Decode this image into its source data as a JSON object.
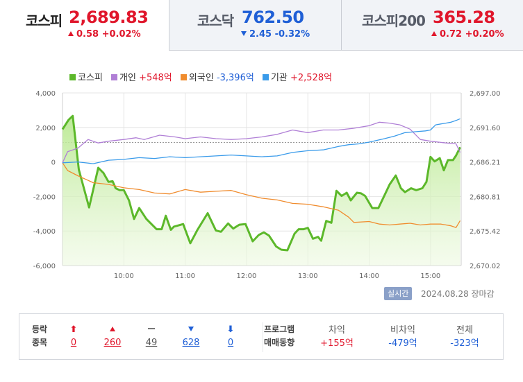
{
  "tabs": [
    {
      "name": "코스피",
      "value": "2,689.83",
      "change": "0.58 +0.02%",
      "direction": "up",
      "active": true
    },
    {
      "name": "코스닥",
      "value": "762.50",
      "change": "2.45 -0.32%",
      "direction": "down",
      "active": false
    },
    {
      "name": "코스피200",
      "value": "365.28",
      "change": "0.72 +0.20%",
      "direction": "up",
      "active": false
    }
  ],
  "legend": [
    {
      "name": "코스피",
      "value": "",
      "color": "#5cb82a"
    },
    {
      "name": "개인",
      "value": "+548억",
      "color": "#b07fd6",
      "value_color": "#e0162b"
    },
    {
      "name": "외국인",
      "value": "-3,396억",
      "color": "#f08c2e",
      "value_color": "#1f5fd6"
    },
    {
      "name": "기관",
      "value": "+2,528억",
      "color": "#3a9bea",
      "value_color": "#e0162b"
    }
  ],
  "realtime_label": "실시간",
  "timestamp": "2024.08.28 장마감",
  "panel": {
    "label_line1": "등락",
    "label_line2": "종목",
    "counts": [
      {
        "kind": "upper-limit",
        "value": "0",
        "color": "#e0162b"
      },
      {
        "kind": "rise",
        "value": "260",
        "color": "#e0162b"
      },
      {
        "kind": "flat",
        "value": "49",
        "color": "#555"
      },
      {
        "kind": "fall",
        "value": "628",
        "color": "#1f5fd6"
      },
      {
        "kind": "lower-limit",
        "value": "0",
        "color": "#1f5fd6"
      }
    ],
    "program_line1": "프로그램",
    "program_line2": "매매동향",
    "stats": [
      {
        "label": "차익",
        "value": "+155억",
        "color": "#e0162b"
      },
      {
        "label": "비차익",
        "value": "-479억",
        "color": "#1f5fd6"
      },
      {
        "label": "전체",
        "value": "-323억",
        "color": "#1f5fd6"
      }
    ]
  },
  "chart_data": {
    "type": "line",
    "x_ticks": [
      "10:00",
      "11:00",
      "12:00",
      "13:00",
      "14:00",
      "15:00"
    ],
    "x_range": [
      "09:00",
      "15:30"
    ],
    "left_axis": {
      "ticks": [
        "4,000",
        "2,000",
        "0",
        "-2,000",
        "-4,000",
        "-6,000"
      ],
      "ylim": [
        -6000,
        4000
      ],
      "unit": "억"
    },
    "right_axis": {
      "ticks": [
        "2,697.00",
        "2,691.60",
        "2,686.21",
        "2,680.81",
        "2,675.42",
        "2,670.02"
      ],
      "ylim": [
        2670.02,
        2697.0
      ]
    },
    "reference_line": {
      "axis": "right",
      "value": 2689.25
    },
    "series": [
      {
        "name": "코스피",
        "axis": "right",
        "color": "#5cb82a",
        "area": true,
        "points": [
          [
            "09:00",
            2691.3
          ],
          [
            "09:06",
            2692.8
          ],
          [
            "09:10",
            2693.4
          ],
          [
            "09:16",
            2685.0
          ],
          [
            "09:26",
            2679.1
          ],
          [
            "09:35",
            2685.3
          ],
          [
            "09:40",
            2684.5
          ],
          [
            "09:45",
            2683.1
          ],
          [
            "09:49",
            2683.2
          ],
          [
            "09:52",
            2682.1
          ],
          [
            "09:56",
            2681.8
          ],
          [
            "10:00",
            2681.8
          ],
          [
            "10:05",
            2680.2
          ],
          [
            "10:10",
            2677.3
          ],
          [
            "10:15",
            2679.0
          ],
          [
            "10:22",
            2677.3
          ],
          [
            "10:32",
            2675.7
          ],
          [
            "10:37",
            2675.7
          ],
          [
            "10:41",
            2677.8
          ],
          [
            "10:46",
            2675.6
          ],
          [
            "10:49",
            2676.1
          ],
          [
            "10:58",
            2676.5
          ],
          [
            "11:05",
            2673.5
          ],
          [
            "11:12",
            2675.6
          ],
          [
            "11:22",
            2678.2
          ],
          [
            "11:27",
            2676.5
          ],
          [
            "11:30",
            2675.5
          ],
          [
            "11:35",
            2675.3
          ],
          [
            "11:42",
            2676.6
          ],
          [
            "11:47",
            2675.8
          ],
          [
            "11:53",
            2676.4
          ],
          [
            "11:59",
            2676.5
          ],
          [
            "12:06",
            2673.8
          ],
          [
            "12:12",
            2674.8
          ],
          [
            "12:17",
            2675.2
          ],
          [
            "12:22",
            2674.7
          ],
          [
            "12:29",
            2673.0
          ],
          [
            "12:34",
            2672.5
          ],
          [
            "12:40",
            2672.4
          ],
          [
            "12:47",
            2675.0
          ],
          [
            "12:51",
            2675.7
          ],
          [
            "12:56",
            2675.7
          ],
          [
            "13:00",
            2675.9
          ],
          [
            "13:05",
            2674.2
          ],
          [
            "13:10",
            2674.5
          ],
          [
            "13:13",
            2673.9
          ],
          [
            "13:18",
            2677.0
          ],
          [
            "13:23",
            2676.7
          ],
          [
            "13:28",
            2681.7
          ],
          [
            "13:33",
            2680.9
          ],
          [
            "13:38",
            2681.4
          ],
          [
            "13:42",
            2680.2
          ],
          [
            "13:48",
            2681.4
          ],
          [
            "13:52",
            2681.3
          ],
          [
            "13:56",
            2680.9
          ],
          [
            "14:03",
            2679.0
          ],
          [
            "14:09",
            2679.0
          ],
          [
            "14:15",
            2681.0
          ],
          [
            "14:20",
            2682.7
          ],
          [
            "14:26",
            2684.1
          ],
          [
            "14:31",
            2682.1
          ],
          [
            "14:35",
            2681.5
          ],
          [
            "14:41",
            2682.1
          ],
          [
            "14:46",
            2681.8
          ],
          [
            "14:52",
            2682.1
          ],
          [
            "14:56",
            2683.1
          ],
          [
            "15:00",
            2687.0
          ],
          [
            "15:04",
            2686.3
          ],
          [
            "15:09",
            2686.8
          ],
          [
            "15:13",
            2684.9
          ],
          [
            "15:17",
            2686.5
          ],
          [
            "15:22",
            2686.5
          ],
          [
            "15:25",
            2687.2
          ],
          [
            "15:29",
            2688.5
          ]
        ]
      },
      {
        "name": "개인",
        "axis": "left",
        "color": "#b07fd6",
        "points": [
          [
            "09:00",
            -50
          ],
          [
            "09:05",
            600
          ],
          [
            "09:15",
            800
          ],
          [
            "09:25",
            1300
          ],
          [
            "09:35",
            1100
          ],
          [
            "09:45",
            1200
          ],
          [
            "10:00",
            1300
          ],
          [
            "10:12",
            1400
          ],
          [
            "10:20",
            1300
          ],
          [
            "10:35",
            1550
          ],
          [
            "10:50",
            1450
          ],
          [
            "11:00",
            1350
          ],
          [
            "11:15",
            1450
          ],
          [
            "11:30",
            1350
          ],
          [
            "11:45",
            1300
          ],
          [
            "12:00",
            1350
          ],
          [
            "12:15",
            1450
          ],
          [
            "12:30",
            1600
          ],
          [
            "12:45",
            1850
          ],
          [
            "13:00",
            1700
          ],
          [
            "13:15",
            1850
          ],
          [
            "13:30",
            1850
          ],
          [
            "13:45",
            1950
          ],
          [
            "14:00",
            2100
          ],
          [
            "14:10",
            2300
          ],
          [
            "14:20",
            2250
          ],
          [
            "14:30",
            2150
          ],
          [
            "14:40",
            1900
          ],
          [
            "14:50",
            1300
          ],
          [
            "15:00",
            1200
          ],
          [
            "15:15",
            1100
          ],
          [
            "15:25",
            1050
          ],
          [
            "15:29",
            550
          ]
        ]
      },
      {
        "name": "외국인",
        "axis": "left",
        "color": "#f08c2e",
        "points": [
          [
            "09:00",
            -50
          ],
          [
            "09:05",
            -500
          ],
          [
            "09:15",
            -800
          ],
          [
            "09:30",
            -1200
          ],
          [
            "09:45",
            -1300
          ],
          [
            "10:00",
            -1500
          ],
          [
            "10:15",
            -1600
          ],
          [
            "10:30",
            -1800
          ],
          [
            "10:45",
            -1850
          ],
          [
            "11:00",
            -1600
          ],
          [
            "11:15",
            -1750
          ],
          [
            "11:30",
            -1700
          ],
          [
            "11:45",
            -1650
          ],
          [
            "12:00",
            -1900
          ],
          [
            "12:15",
            -2100
          ],
          [
            "12:30",
            -2200
          ],
          [
            "12:45",
            -2400
          ],
          [
            "13:00",
            -2450
          ],
          [
            "13:15",
            -2600
          ],
          [
            "13:30",
            -2800
          ],
          [
            "13:40",
            -3200
          ],
          [
            "13:45",
            -3500
          ],
          [
            "14:00",
            -3450
          ],
          [
            "14:10",
            -3600
          ],
          [
            "14:20",
            -3650
          ],
          [
            "14:30",
            -3600
          ],
          [
            "14:40",
            -3550
          ],
          [
            "14:50",
            -3650
          ],
          [
            "15:00",
            -3600
          ],
          [
            "15:10",
            -3600
          ],
          [
            "15:20",
            -3700
          ],
          [
            "15:25",
            -3800
          ],
          [
            "15:29",
            -3400
          ]
        ]
      },
      {
        "name": "기관",
        "axis": "left",
        "color": "#3a9bea",
        "points": [
          [
            "09:00",
            -50
          ],
          [
            "09:15",
            0
          ],
          [
            "09:30",
            -100
          ],
          [
            "09:45",
            100
          ],
          [
            "10:00",
            150
          ],
          [
            "10:15",
            250
          ],
          [
            "10:30",
            200
          ],
          [
            "10:45",
            300
          ],
          [
            "11:00",
            250
          ],
          [
            "11:15",
            300
          ],
          [
            "11:30",
            350
          ],
          [
            "11:45",
            400
          ],
          [
            "12:00",
            350
          ],
          [
            "12:15",
            300
          ],
          [
            "12:30",
            350
          ],
          [
            "12:45",
            550
          ],
          [
            "13:00",
            650
          ],
          [
            "13:15",
            700
          ],
          [
            "13:30",
            900
          ],
          [
            "13:40",
            1000
          ],
          [
            "13:50",
            1050
          ],
          [
            "14:00",
            1150
          ],
          [
            "14:15",
            1350
          ],
          [
            "14:25",
            1500
          ],
          [
            "14:35",
            1700
          ],
          [
            "14:45",
            1750
          ],
          [
            "14:55",
            1800
          ],
          [
            "15:00",
            1850
          ],
          [
            "15:05",
            2150
          ],
          [
            "15:10",
            2200
          ],
          [
            "15:15",
            2250
          ],
          [
            "15:20",
            2300
          ],
          [
            "15:25",
            2400
          ],
          [
            "15:29",
            2500
          ]
        ]
      }
    ]
  }
}
